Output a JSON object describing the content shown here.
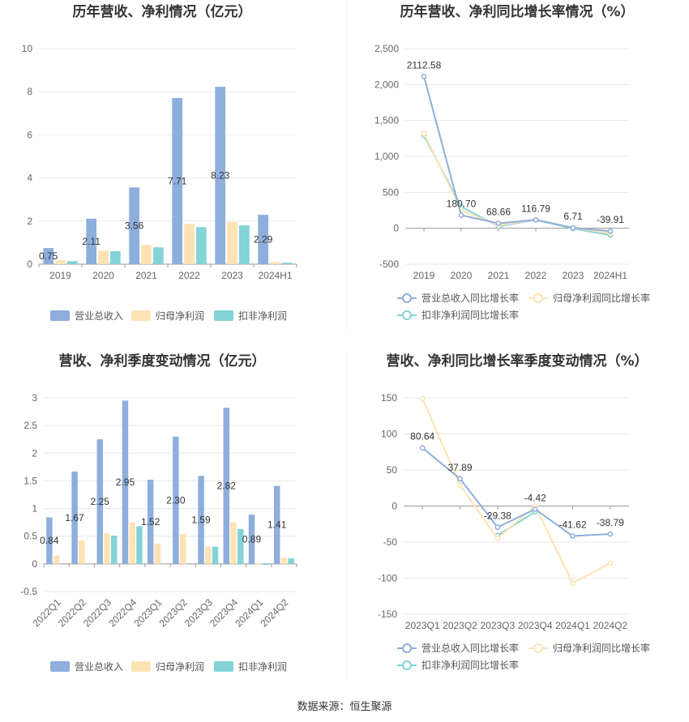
{
  "source_note": "数据来源：恒生聚源",
  "colors": {
    "revenue": "#8eaedc",
    "parent_profit": "#fde3b4",
    "deducted_profit": "#83d3d8"
  },
  "chart_data": [
    {
      "type": "bar",
      "title": "历年营收、净利情况（亿元）",
      "categories": [
        "2019",
        "2020",
        "2021",
        "2022",
        "2023",
        "2024H1"
      ],
      "ylim": [
        0,
        10
      ],
      "yticks": [
        0,
        2,
        4,
        6,
        8,
        10
      ],
      "grid": true,
      "legend_position": "bottom",
      "series": [
        {
          "name": "营业总收入",
          "values": [
            0.75,
            2.11,
            3.56,
            7.71,
            8.23,
            2.29
          ],
          "labels": [
            "0.75",
            "2.11",
            "3.56",
            "7.71",
            "8.23",
            "2.29"
          ]
        },
        {
          "name": "归母净利润",
          "values": [
            0.18,
            0.63,
            0.9,
            1.87,
            1.95,
            0.1
          ]
        },
        {
          "name": "扣非净利润",
          "values": [
            0.14,
            0.6,
            0.78,
            1.72,
            1.8,
            0.07
          ]
        }
      ]
    },
    {
      "type": "line",
      "title": "历年营收、净利同比增长率情况（%）",
      "categories": [
        "2019",
        "2020",
        "2021",
        "2022",
        "2023",
        "2024H1"
      ],
      "ylim": [
        -500,
        2500
      ],
      "yticks": [
        -500,
        0,
        500,
        1000,
        1500,
        2000,
        2500
      ],
      "ytick_labels": [
        "-500",
        "0",
        "500",
        "1,000",
        "1,500",
        "2,000",
        "2,500"
      ],
      "grid": true,
      "legend_position": "bottom",
      "series": [
        {
          "name": "营业总收入同比增长率",
          "values": [
            2112.58,
            180.7,
            68.66,
            116.79,
            6.71,
            -39.91
          ],
          "labels": [
            "2112.58",
            "180.70",
            "68.66",
            "116.79",
            "6.71",
            "-39.91"
          ]
        },
        {
          "name": "归母净利润同比增长率",
          "values": [
            1320,
            250,
            40,
            120,
            5,
            -70
          ]
        },
        {
          "name": "扣非净利润同比增长率",
          "values": [
            1290,
            300,
            25,
            118,
            -5,
            -95
          ]
        }
      ]
    },
    {
      "type": "bar",
      "title": "营收、净利季度变动情况（亿元）",
      "categories": [
        "2022Q1",
        "2022Q2",
        "2022Q3",
        "2022Q4",
        "2023Q1",
        "2023Q2",
        "2023Q3",
        "2023Q4",
        "2024Q1",
        "2024Q2"
      ],
      "ylim": [
        -0.5,
        3
      ],
      "yticks": [
        -0.5,
        0,
        0.5,
        1,
        1.5,
        2,
        2.5,
        3
      ],
      "ytick_labels": [
        "-0.5",
        "0",
        "0.5",
        "1",
        "1.5",
        "2",
        "2.5",
        "3"
      ],
      "grid": true,
      "legend_position": "bottom",
      "series": [
        {
          "name": "营业总收入",
          "values": [
            0.84,
            1.67,
            2.25,
            2.95,
            1.52,
            2.3,
            1.59,
            2.82,
            0.89,
            1.41
          ],
          "labels": [
            "0.84",
            "1.67",
            "2.25",
            "2.95",
            "1.52",
            "2.30",
            "1.59",
            "2.82",
            "0.89",
            "1.41"
          ]
        },
        {
          "name": "归母净利润",
          "values": [
            0.15,
            0.42,
            0.55,
            0.75,
            0.37,
            0.54,
            0.31,
            0.75,
            0.01,
            0.11
          ]
        },
        {
          "name": "扣非净利润",
          "values": [
            0.0,
            0.0,
            0.51,
            0.68,
            0.0,
            0.0,
            0.31,
            0.63,
            -0.02,
            0.1
          ]
        }
      ]
    },
    {
      "type": "line",
      "title": "营收、净利同比增长率季度变动情况（%）",
      "categories": [
        "2023Q1",
        "2023Q2",
        "2023Q3",
        "2023Q4",
        "2024Q1",
        "2024Q2"
      ],
      "ylim": [
        -150,
        150
      ],
      "yticks": [
        -150,
        -100,
        -50,
        0,
        50,
        100,
        150
      ],
      "grid": true,
      "legend_position": "bottom",
      "series": [
        {
          "name": "营业总收入同比增长率",
          "values": [
            80.64,
            37.89,
            -29.38,
            -4.42,
            -41.62,
            -38.79
          ],
          "labels": [
            "80.64",
            "37.89",
            "-29.38",
            "-4.42",
            "-41.62",
            "-38.79"
          ]
        },
        {
          "name": "归母净利润同比增长率",
          "values": [
            149,
            29,
            -45,
            0,
            -107,
            -79
          ]
        },
        {
          "name": "扣非净利润同比增长率",
          "values": [
            null,
            null,
            -41,
            -8,
            null,
            null
          ]
        }
      ]
    }
  ]
}
